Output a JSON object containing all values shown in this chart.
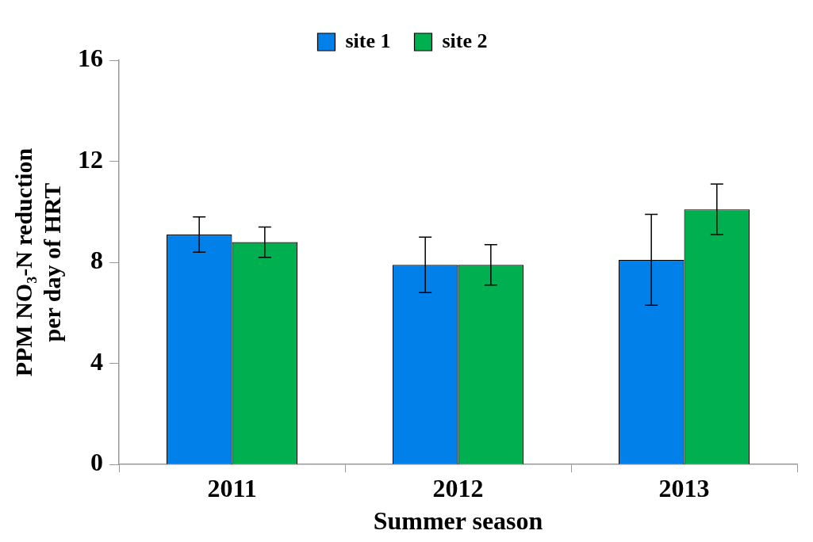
{
  "chart_data": {
    "type": "bar",
    "xlabel": "Summer season",
    "ylabel": "PPM NO₃-N reduction per day of HRT",
    "categories": [
      "2011",
      "2012",
      "2013"
    ],
    "series": [
      {
        "name": "site 1",
        "color": "#0080e8",
        "values": [
          9.1,
          7.9,
          8.1
        ],
        "errors": [
          0.7,
          1.1,
          1.8
        ]
      },
      {
        "name": "site 2",
        "color": "#00b050",
        "values": [
          8.8,
          7.9,
          10.1
        ],
        "errors": [
          0.6,
          0.8,
          1.0
        ]
      }
    ],
    "ylim": [
      0,
      16
    ],
    "yticks": [
      0,
      4,
      8,
      12,
      16
    ],
    "grid": false,
    "legend": "top"
  }
}
